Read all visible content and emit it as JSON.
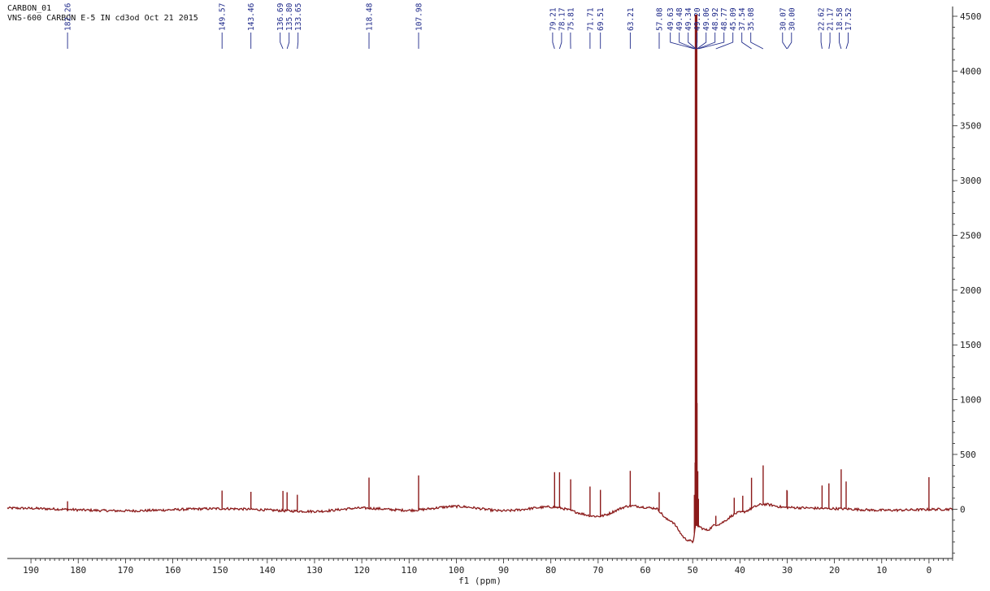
{
  "header": {
    "line1": "CARBON_01",
    "line2": "VNS-600 CARBON E-5 IN cd3od Oct 21 2015"
  },
  "colors": {
    "spectrum": "#8b1a1a",
    "peak_labels": "#1f2a8a",
    "axis": "#222222"
  },
  "chart_data": {
    "type": "line",
    "xlabel": "f1 (ppm)",
    "xlim": [
      195,
      -5
    ],
    "x_reversed": true,
    "ylim": [
      -450,
      4500
    ],
    "x_ticks": [
      190,
      180,
      170,
      160,
      150,
      140,
      130,
      120,
      110,
      100,
      90,
      80,
      70,
      60,
      50,
      40,
      30,
      20,
      10,
      0
    ],
    "y_ticks": [
      0,
      500,
      1000,
      1500,
      2000,
      2500,
      3000,
      3500,
      4000,
      4500
    ],
    "y_axis_position": "right",
    "grid": false,
    "baseline_profile": [
      [
        195,
        10
      ],
      [
        170,
        -15
      ],
      [
        150,
        5
      ],
      [
        130,
        -20
      ],
      [
        120,
        10
      ],
      [
        110,
        -10
      ],
      [
        100,
        25
      ],
      [
        90,
        -15
      ],
      [
        80,
        20
      ],
      [
        70,
        -65
      ],
      [
        63,
        30
      ],
      [
        58,
        10
      ],
      [
        55,
        -100
      ],
      [
        51,
        -280
      ],
      [
        50,
        -300
      ],
      [
        49.3,
        -150
      ],
      [
        47,
        -190
      ],
      [
        45,
        -140
      ],
      [
        40,
        -30
      ],
      [
        35,
        45
      ],
      [
        30,
        15
      ],
      [
        20,
        5
      ],
      [
        10,
        -10
      ],
      [
        -5,
        0
      ]
    ],
    "peaks": [
      {
        "ppm": 182.26,
        "label": "182.26",
        "height": 75
      },
      {
        "ppm": 149.57,
        "label": "149.57",
        "height": 165
      },
      {
        "ppm": 143.46,
        "label": "143.46",
        "height": 160
      },
      {
        "ppm": 136.69,
        "label": "136.69",
        "height": 180
      },
      {
        "ppm": 135.8,
        "label": "135.80",
        "height": 170
      },
      {
        "ppm": 133.65,
        "label": "133.65",
        "height": 150
      },
      {
        "ppm": 118.48,
        "label": "118.48",
        "height": 280
      },
      {
        "ppm": 107.98,
        "label": "107.98",
        "height": 315
      },
      {
        "ppm": 79.21,
        "label": "79.21",
        "height": 320
      },
      {
        "ppm": 78.17,
        "label": "78.17",
        "height": 325
      },
      {
        "ppm": 75.81,
        "label": "75.81",
        "height": 285
      },
      {
        "ppm": 71.71,
        "label": "71.71",
        "height": 265
      },
      {
        "ppm": 69.51,
        "label": "69.51",
        "height": 240
      },
      {
        "ppm": 63.21,
        "label": "63.21",
        "height": 320
      },
      {
        "ppm": 57.08,
        "label": "57.08",
        "height": 170
      },
      {
        "ppm": 49.63,
        "label": "49.63",
        "height": 350
      },
      {
        "ppm": 49.48,
        "label": "49.48",
        "height": 600
      },
      {
        "ppm": 49.34,
        "label": "49.34",
        "height": 4500
      },
      {
        "ppm": 49.2,
        "label": "49.20",
        "height": 4500
      },
      {
        "ppm": 49.06,
        "label": "49.06",
        "height": 1120
      },
      {
        "ppm": 48.92,
        "label": "48.92",
        "height": 500
      },
      {
        "ppm": 48.77,
        "label": "48.77",
        "height": 250
      },
      {
        "ppm": 45.09,
        "label": "45.09",
        "height": 80
      },
      {
        "ppm": 41.2,
        "label": "",
        "height": 150
      },
      {
        "ppm": 39.4,
        "label": "",
        "height": 150
      },
      {
        "ppm": 37.54,
        "label": "37.54",
        "height": 280
      },
      {
        "ppm": 35.08,
        "label": "35.08",
        "height": 355
      },
      {
        "ppm": 30.07,
        "label": "30.07",
        "height": 160
      },
      {
        "ppm": 30.0,
        "label": "30.00",
        "height": 150
      },
      {
        "ppm": 22.62,
        "label": "22.62",
        "height": 210
      },
      {
        "ppm": 21.17,
        "label": "21.17",
        "height": 230
      },
      {
        "ppm": 18.58,
        "label": "18.58",
        "height": 360
      },
      {
        "ppm": 17.52,
        "label": "17.52",
        "height": 250
      },
      {
        "ppm": 0.0,
        "label": "",
        "height": 295
      }
    ]
  }
}
